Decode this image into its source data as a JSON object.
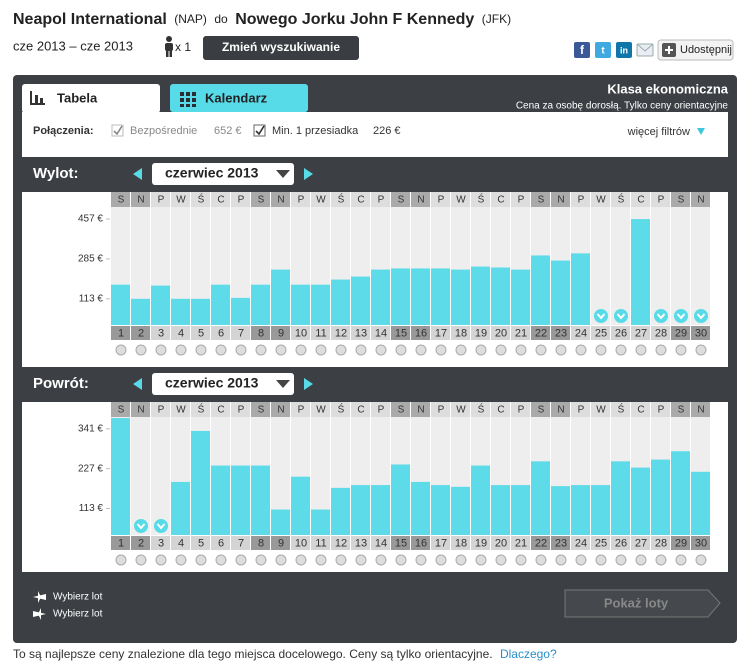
{
  "header": {
    "origin": "Neapol International",
    "origin_code": "(NAP)",
    "connector": "do",
    "destination": "Nowego Jorku John F Kennedy",
    "destination_code": "(JFK)",
    "dates": "cze 2013 – cze 2013",
    "passengers": "x 1",
    "change_button": "Zmień wyszukiwanie",
    "share_button": "Udostępnij"
  },
  "tabs": [
    "Tabela",
    "Kalendarz"
  ],
  "cabin": {
    "title": "Klasa ekonomiczna",
    "note": "Cena za osobę dorosłą. Tylko ceny orientacyjne"
  },
  "filters": {
    "label": "Połączenia:",
    "options": [
      {
        "label": "Bezpośrednie",
        "price": "652 €",
        "checked": true,
        "enabled": false
      },
      {
        "label": "Min. 1 przesiadka",
        "price": "226 €",
        "checked": true,
        "enabled": true
      }
    ],
    "more": "więcej filtrów"
  },
  "chart_data": [
    {
      "type": "bar",
      "title": "Wylot:",
      "month": "czerwiec 2013",
      "color": "#5ddbe8",
      "categories": [
        "1",
        "2",
        "3",
        "4",
        "5",
        "6",
        "7",
        "8",
        "9",
        "10",
        "11",
        "12",
        "13",
        "14",
        "15",
        "16",
        "17",
        "18",
        "19",
        "20",
        "21",
        "22",
        "23",
        "24",
        "25",
        "26",
        "27",
        "28",
        "29",
        "30"
      ],
      "weekdays": [
        "S",
        "N",
        "P",
        "W",
        "Ś",
        "C",
        "P",
        "S",
        "N",
        "P",
        "W",
        "Ś",
        "C",
        "P",
        "S",
        "N",
        "P",
        "W",
        "Ś",
        "C",
        "P",
        "S",
        "N",
        "P",
        "W",
        "Ś",
        "C",
        "P",
        "S",
        "N"
      ],
      "values": [
        174,
        113,
        170,
        113,
        113,
        174,
        117,
        174,
        239,
        174,
        174,
        196,
        209,
        239,
        244,
        244,
        244,
        239,
        252,
        248,
        239,
        300,
        278,
        309,
        null,
        null,
        457,
        null,
        null,
        null
      ],
      "ylim": [
        0,
        509
      ],
      "yticks": [
        {
          "value": 113,
          "label": "113 €"
        },
        {
          "value": 285,
          "label": "285 €"
        },
        {
          "value": 457,
          "label": "457 €"
        }
      ]
    },
    {
      "type": "bar",
      "title": "Powrót:",
      "month": "czerwiec 2013",
      "color": "#5ddbe8",
      "categories": [
        "1",
        "2",
        "3",
        "4",
        "5",
        "6",
        "7",
        "8",
        "9",
        "10",
        "11",
        "12",
        "13",
        "14",
        "15",
        "16",
        "17",
        "18",
        "19",
        "20",
        "21",
        "22",
        "23",
        "24",
        "25",
        "26",
        "27",
        "28",
        "29",
        "30"
      ],
      "weekdays": [
        "S",
        "N",
        "P",
        "W",
        "Ś",
        "C",
        "P",
        "S",
        "N",
        "P",
        "W",
        "Ś",
        "C",
        "P",
        "S",
        "N",
        "P",
        "W",
        "Ś",
        "C",
        "P",
        "S",
        "N",
        "P",
        "W",
        "Ś",
        "C",
        "P",
        "S",
        "N"
      ],
      "values": [
        372,
        null,
        null,
        189,
        335,
        236,
        236,
        236,
        110,
        204,
        110,
        172,
        180,
        180,
        239,
        189,
        180,
        175,
        236,
        180,
        180,
        248,
        177,
        180,
        180,
        248,
        230,
        253,
        277,
        218
      ],
      "ylim": [
        37,
        375
      ],
      "yticks": [
        {
          "value": 113,
          "label": "113 €"
        },
        {
          "value": 227,
          "label": "227 €"
        },
        {
          "value": 341,
          "label": "341 €"
        }
      ]
    }
  ],
  "legend": [
    "Wybierz lot",
    "Wybierz lot"
  ],
  "show_button": "Pokaż loty",
  "footer": {
    "text": "To są najlepsze ceny znalezione dla tego miejsca docelowego. Ceny są tylko orientacyjne.",
    "link": "Dlaczego?"
  }
}
